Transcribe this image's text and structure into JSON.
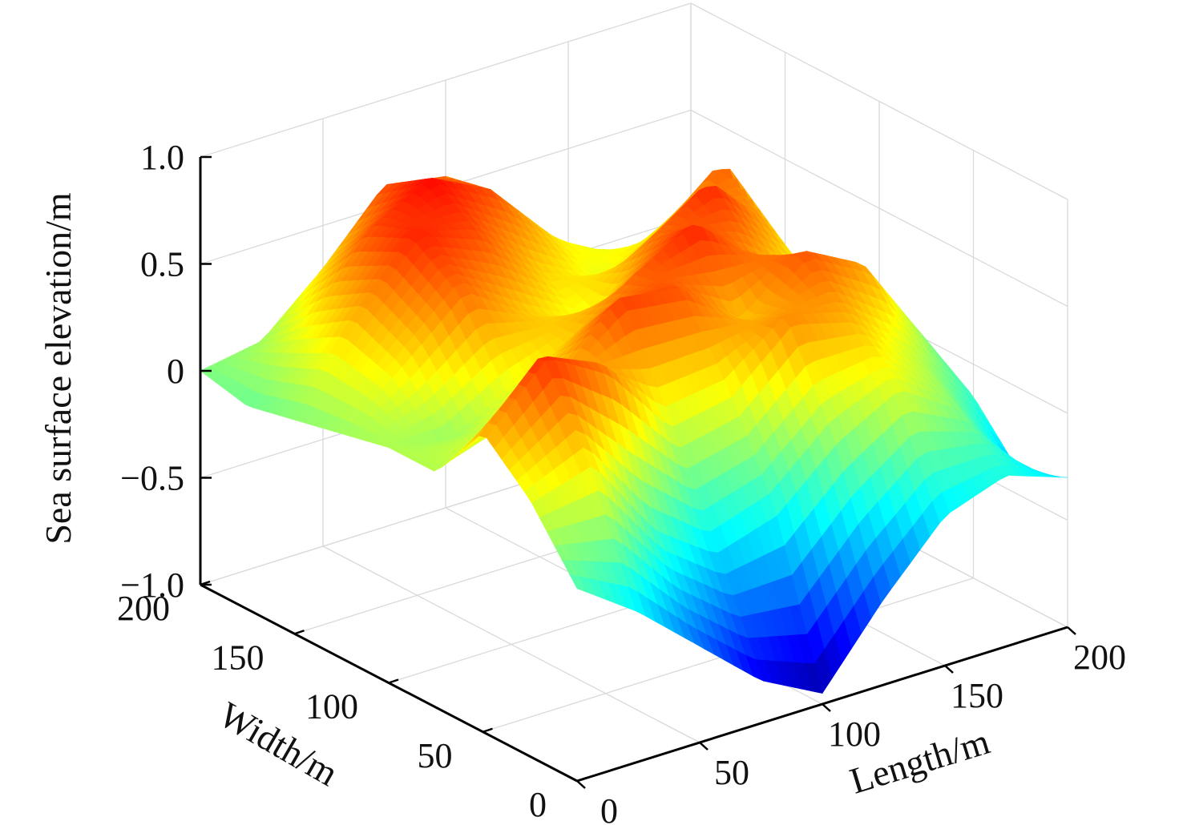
{
  "chart_data": {
    "type": "surface",
    "title": "",
    "xlabel": "Length/m",
    "ylabel": "Width/m",
    "zlabel": "Sea surface elevation/m",
    "xlim": [
      0,
      200
    ],
    "ylim": [
      0,
      200
    ],
    "zlim": [
      -1.0,
      1.0
    ],
    "x_ticks": [
      "0",
      "50",
      "100",
      "150",
      "200"
    ],
    "y_ticks": [
      "0",
      "50",
      "100",
      "150",
      "200"
    ],
    "z_ticks": [
      "−1.0",
      "−0.5",
      "0",
      "0.5",
      "1.0"
    ],
    "grid": true,
    "colormap": "jet",
    "elevation_note": "",
    "x": [
      0,
      25,
      50,
      75,
      100,
      125,
      150,
      175,
      200
    ],
    "y": [
      0,
      25,
      50,
      75,
      100,
      125,
      150,
      175,
      200
    ],
    "z": [
      [
        -0.1,
        -0.3,
        -0.55,
        -0.8,
        -0.95,
        -0.6,
        -0.3,
        -0.2,
        -0.3
      ],
      [
        0.2,
        0.3,
        -0.1,
        -0.3,
        -0.2,
        0.05,
        0.2,
        0.0,
        -0.4
      ],
      [
        0.4,
        0.7,
        0.55,
        0.2,
        0.25,
        0.5,
        0.4,
        0.15,
        -0.15
      ],
      [
        0.1,
        0.2,
        0.35,
        0.65,
        0.6,
        0.35,
        0.6,
        0.45,
        0.0
      ],
      [
        0.1,
        0.05,
        0.2,
        0.35,
        0.55,
        0.7,
        0.45,
        0.2,
        0.05
      ],
      [
        0.05,
        0.3,
        0.55,
        0.35,
        0.2,
        0.5,
        0.7,
        0.4,
        -0.2
      ],
      [
        0.0,
        0.4,
        0.7,
        0.6,
        0.35,
        0.2,
        0.35,
        0.6,
        -0.3
      ],
      [
        -0.05,
        0.25,
        0.6,
        0.75,
        0.6,
        0.3,
        0.1,
        0.15,
        -0.2
      ],
      [
        0.0,
        0.05,
        0.3,
        0.6,
        0.55,
        0.05,
        -0.2,
        -0.1,
        -0.1
      ]
    ]
  }
}
